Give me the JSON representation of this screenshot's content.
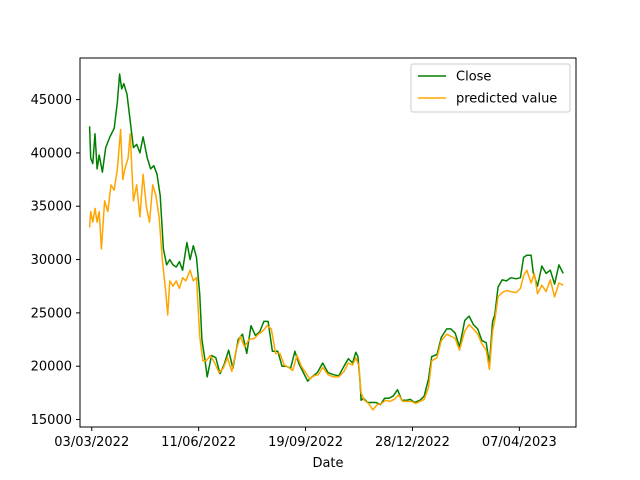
{
  "chart_data": {
    "type": "line",
    "title": "",
    "xlabel": "Date",
    "ylabel": "",
    "xlim": [
      "2022-02-20",
      "2023-05-30"
    ],
    "ylim": [
      14300,
      48900
    ],
    "x_ticks": [
      {
        "date": "2022-03-03",
        "label": "03/03/2022"
      },
      {
        "date": "2022-06-11",
        "label": "11/06/2022"
      },
      {
        "date": "2022-09-19",
        "label": "19/09/2022"
      },
      {
        "date": "2022-12-28",
        "label": "28/12/2022"
      },
      {
        "date": "2023-04-07",
        "label": "07/04/2023"
      }
    ],
    "y_ticks": [
      15000,
      20000,
      25000,
      30000,
      35000,
      40000,
      45000
    ],
    "grid": false,
    "legend_position": "upper right",
    "series": [
      {
        "name": "Close",
        "color": "#008000",
        "points": [
          [
            "2022-03-01",
            42500
          ],
          [
            "2022-03-02",
            39500
          ],
          [
            "2022-03-04",
            39000
          ],
          [
            "2022-03-06",
            41800
          ],
          [
            "2022-03-08",
            38500
          ],
          [
            "2022-03-10",
            39800
          ],
          [
            "2022-03-13",
            38200
          ],
          [
            "2022-03-16",
            40500
          ],
          [
            "2022-03-20",
            41500
          ],
          [
            "2022-03-24",
            42300
          ],
          [
            "2022-03-27",
            44800
          ],
          [
            "2022-03-29",
            47400
          ],
          [
            "2022-03-31",
            46000
          ],
          [
            "2022-04-02",
            46500
          ],
          [
            "2022-04-05",
            45500
          ],
          [
            "2022-04-08",
            43000
          ],
          [
            "2022-04-11",
            40500
          ],
          [
            "2022-04-14",
            40800
          ],
          [
            "2022-04-17",
            40000
          ],
          [
            "2022-04-20",
            41500
          ],
          [
            "2022-04-24",
            39500
          ],
          [
            "2022-04-27",
            38500
          ],
          [
            "2022-04-30",
            38800
          ],
          [
            "2022-05-03",
            38000
          ],
          [
            "2022-05-06",
            36000
          ],
          [
            "2022-05-09",
            31000
          ],
          [
            "2022-05-12",
            29500
          ],
          [
            "2022-05-15",
            30000
          ],
          [
            "2022-05-18",
            29500
          ],
          [
            "2022-05-21",
            29300
          ],
          [
            "2022-05-24",
            29800
          ],
          [
            "2022-05-27",
            29000
          ],
          [
            "2022-05-31",
            31600
          ],
          [
            "2022-06-03",
            30000
          ],
          [
            "2022-06-06",
            31300
          ],
          [
            "2022-06-09",
            30200
          ],
          [
            "2022-06-12",
            26800
          ],
          [
            "2022-06-14",
            22500
          ],
          [
            "2022-06-17",
            20500
          ],
          [
            "2022-06-19",
            19000
          ],
          [
            "2022-06-23",
            21000
          ],
          [
            "2022-06-27",
            20800
          ],
          [
            "2022-07-01",
            19300
          ],
          [
            "2022-07-05",
            20200
          ],
          [
            "2022-07-09",
            21500
          ],
          [
            "2022-07-13",
            19800
          ],
          [
            "2022-07-18",
            22500
          ],
          [
            "2022-07-22",
            23000
          ],
          [
            "2022-07-26",
            21200
          ],
          [
            "2022-07-30",
            23800
          ],
          [
            "2022-08-03",
            22900
          ],
          [
            "2022-08-07",
            23200
          ],
          [
            "2022-08-11",
            24200
          ],
          [
            "2022-08-15",
            24200
          ],
          [
            "2022-08-19",
            21400
          ],
          [
            "2022-08-24",
            21400
          ],
          [
            "2022-08-28",
            20000
          ],
          [
            "2022-09-01",
            20000
          ],
          [
            "2022-09-05",
            19800
          ],
          [
            "2022-09-09",
            21400
          ],
          [
            "2022-09-13",
            20200
          ],
          [
            "2022-09-17",
            19400
          ],
          [
            "2022-09-21",
            18600
          ],
          [
            "2022-09-25",
            19000
          ],
          [
            "2022-09-30",
            19400
          ],
          [
            "2022-10-05",
            20300
          ],
          [
            "2022-10-10",
            19400
          ],
          [
            "2022-10-15",
            19200
          ],
          [
            "2022-10-20",
            19100
          ],
          [
            "2022-10-25",
            20000
          ],
          [
            "2022-10-29",
            20700
          ],
          [
            "2022-11-02",
            20300
          ],
          [
            "2022-11-05",
            21300
          ],
          [
            "2022-11-07",
            20900
          ],
          [
            "2022-11-09",
            18500
          ],
          [
            "2022-11-10",
            16800
          ],
          [
            "2022-11-12",
            17000
          ],
          [
            "2022-11-16",
            16600
          ],
          [
            "2022-11-20",
            16600
          ],
          [
            "2022-11-24",
            16600
          ],
          [
            "2022-11-28",
            16400
          ],
          [
            "2022-12-02",
            17000
          ],
          [
            "2022-12-06",
            17000
          ],
          [
            "2022-12-10",
            17200
          ],
          [
            "2022-12-14",
            17800
          ],
          [
            "2022-12-18",
            16800
          ],
          [
            "2022-12-22",
            16800
          ],
          [
            "2022-12-26",
            16900
          ],
          [
            "2022-12-30",
            16600
          ],
          [
            "2023-01-04",
            16800
          ],
          [
            "2023-01-08",
            17200
          ],
          [
            "2023-01-12",
            18800
          ],
          [
            "2023-01-15",
            20900
          ],
          [
            "2023-01-20",
            21100
          ],
          [
            "2023-01-24",
            22700
          ],
          [
            "2023-01-29",
            23500
          ],
          [
            "2023-02-02",
            23500
          ],
          [
            "2023-02-06",
            23100
          ],
          [
            "2023-02-10",
            21800
          ],
          [
            "2023-02-15",
            24300
          ],
          [
            "2023-02-19",
            24700
          ],
          [
            "2023-02-23",
            23900
          ],
          [
            "2023-02-27",
            23500
          ],
          [
            "2023-03-03",
            22400
          ],
          [
            "2023-03-07",
            22200
          ],
          [
            "2023-03-10",
            20200
          ],
          [
            "2023-03-13",
            24200
          ],
          [
            "2023-03-15",
            24800
          ],
          [
            "2023-03-18",
            27400
          ],
          [
            "2023-03-22",
            28100
          ],
          [
            "2023-03-26",
            28000
          ],
          [
            "2023-03-30",
            28300
          ],
          [
            "2023-04-04",
            28200
          ],
          [
            "2023-04-08",
            28300
          ],
          [
            "2023-04-11",
            30200
          ],
          [
            "2023-04-14",
            30400
          ],
          [
            "2023-04-18",
            30400
          ],
          [
            "2023-04-20",
            28800
          ],
          [
            "2023-04-24",
            27500
          ],
          [
            "2023-04-28",
            29400
          ],
          [
            "2023-05-02",
            28700
          ],
          [
            "2023-05-06",
            29000
          ],
          [
            "2023-05-10",
            27700
          ],
          [
            "2023-05-14",
            29500
          ],
          [
            "2023-05-18",
            28700
          ]
        ]
      },
      {
        "name": "predicted value",
        "color": "#ffa500",
        "points": [
          [
            "2022-03-01",
            33000
          ],
          [
            "2022-03-02",
            34500
          ],
          [
            "2022-03-04",
            33500
          ],
          [
            "2022-03-06",
            34800
          ],
          [
            "2022-03-08",
            33500
          ],
          [
            "2022-03-10",
            34500
          ],
          [
            "2022-03-12",
            31000
          ],
          [
            "2022-03-15",
            35500
          ],
          [
            "2022-03-18",
            34500
          ],
          [
            "2022-03-21",
            37000
          ],
          [
            "2022-03-24",
            36500
          ],
          [
            "2022-03-27",
            38500
          ],
          [
            "2022-03-30",
            42200
          ],
          [
            "2022-04-01",
            37500
          ],
          [
            "2022-04-03",
            38500
          ],
          [
            "2022-04-06",
            39500
          ],
          [
            "2022-04-08",
            41800
          ],
          [
            "2022-04-11",
            35500
          ],
          [
            "2022-04-14",
            37000
          ],
          [
            "2022-04-17",
            34000
          ],
          [
            "2022-04-20",
            38000
          ],
          [
            "2022-04-23",
            35000
          ],
          [
            "2022-04-26",
            33500
          ],
          [
            "2022-04-29",
            37000
          ],
          [
            "2022-05-02",
            36000
          ],
          [
            "2022-05-05",
            34000
          ],
          [
            "2022-05-08",
            30000
          ],
          [
            "2022-05-11",
            27200
          ],
          [
            "2022-05-13",
            24800
          ],
          [
            "2022-05-15",
            28000
          ],
          [
            "2022-05-18",
            27500
          ],
          [
            "2022-05-21",
            28000
          ],
          [
            "2022-05-24",
            27300
          ],
          [
            "2022-05-27",
            28300
          ],
          [
            "2022-05-30",
            28000
          ],
          [
            "2022-06-03",
            29000
          ],
          [
            "2022-06-06",
            28000
          ],
          [
            "2022-06-09",
            28300
          ],
          [
            "2022-06-12",
            22800
          ],
          [
            "2022-06-15",
            20500
          ],
          [
            "2022-06-18",
            20500
          ],
          [
            "2022-06-22",
            21000
          ],
          [
            "2022-06-26",
            20300
          ],
          [
            "2022-06-30",
            19400
          ],
          [
            "2022-07-04",
            19800
          ],
          [
            "2022-07-08",
            20800
          ],
          [
            "2022-07-12",
            19500
          ],
          [
            "2022-07-16",
            21500
          ],
          [
            "2022-07-20",
            22800
          ],
          [
            "2022-07-24",
            21800
          ],
          [
            "2022-07-28",
            22500
          ],
          [
            "2022-08-02",
            22600
          ],
          [
            "2022-08-06",
            23000
          ],
          [
            "2022-08-10",
            23300
          ],
          [
            "2022-08-14",
            23800
          ],
          [
            "2022-08-18",
            23500
          ],
          [
            "2022-08-22",
            21200
          ],
          [
            "2022-08-26",
            21200
          ],
          [
            "2022-08-30",
            20100
          ],
          [
            "2022-09-03",
            19900
          ],
          [
            "2022-09-07",
            19600
          ],
          [
            "2022-09-11",
            21000
          ],
          [
            "2022-09-15",
            20000
          ],
          [
            "2022-09-19",
            19400
          ],
          [
            "2022-09-23",
            18800
          ],
          [
            "2022-09-27",
            19100
          ],
          [
            "2022-10-01",
            19200
          ],
          [
            "2022-10-05",
            19900
          ],
          [
            "2022-10-10",
            19200
          ],
          [
            "2022-10-15",
            19000
          ],
          [
            "2022-10-20",
            19000
          ],
          [
            "2022-10-25",
            19500
          ],
          [
            "2022-10-29",
            20300
          ],
          [
            "2022-11-02",
            20100
          ],
          [
            "2022-11-05",
            20800
          ],
          [
            "2022-11-08",
            20000
          ],
          [
            "2022-11-10",
            17500
          ],
          [
            "2022-11-13",
            16800
          ],
          [
            "2022-11-17",
            16500
          ],
          [
            "2022-11-21",
            15900
          ],
          [
            "2022-11-25",
            16400
          ],
          [
            "2022-11-29",
            16500
          ],
          [
            "2022-12-03",
            16800
          ],
          [
            "2022-12-07",
            16700
          ],
          [
            "2022-12-11",
            16900
          ],
          [
            "2022-12-15",
            17300
          ],
          [
            "2022-12-19",
            16700
          ],
          [
            "2022-12-23",
            16700
          ],
          [
            "2022-12-27",
            16700
          ],
          [
            "2022-12-31",
            16500
          ],
          [
            "2023-01-04",
            16700
          ],
          [
            "2023-01-08",
            16900
          ],
          [
            "2023-01-12",
            18000
          ],
          [
            "2023-01-15",
            20500
          ],
          [
            "2023-01-20",
            20800
          ],
          [
            "2023-01-24",
            22400
          ],
          [
            "2023-01-29",
            23000
          ],
          [
            "2023-02-02",
            22800
          ],
          [
            "2023-02-06",
            22600
          ],
          [
            "2023-02-10",
            21500
          ],
          [
            "2023-02-15",
            23300
          ],
          [
            "2023-02-19",
            23900
          ],
          [
            "2023-02-23",
            23500
          ],
          [
            "2023-02-27",
            23000
          ],
          [
            "2023-03-03",
            22100
          ],
          [
            "2023-03-07",
            21500
          ],
          [
            "2023-03-10",
            19700
          ],
          [
            "2023-03-13",
            23300
          ],
          [
            "2023-03-15",
            24300
          ],
          [
            "2023-03-18",
            26500
          ],
          [
            "2023-03-22",
            26900
          ],
          [
            "2023-03-26",
            27100
          ],
          [
            "2023-03-30",
            27000
          ],
          [
            "2023-04-04",
            26900
          ],
          [
            "2023-04-08",
            27300
          ],
          [
            "2023-04-11",
            28500
          ],
          [
            "2023-04-14",
            29000
          ],
          [
            "2023-04-18",
            27800
          ],
          [
            "2023-04-21",
            28700
          ],
          [
            "2023-04-24",
            26800
          ],
          [
            "2023-04-28",
            27600
          ],
          [
            "2023-05-02",
            27000
          ],
          [
            "2023-05-06",
            28100
          ],
          [
            "2023-05-10",
            26500
          ],
          [
            "2023-05-14",
            27800
          ],
          [
            "2023-05-18",
            27600
          ]
        ]
      }
    ]
  }
}
